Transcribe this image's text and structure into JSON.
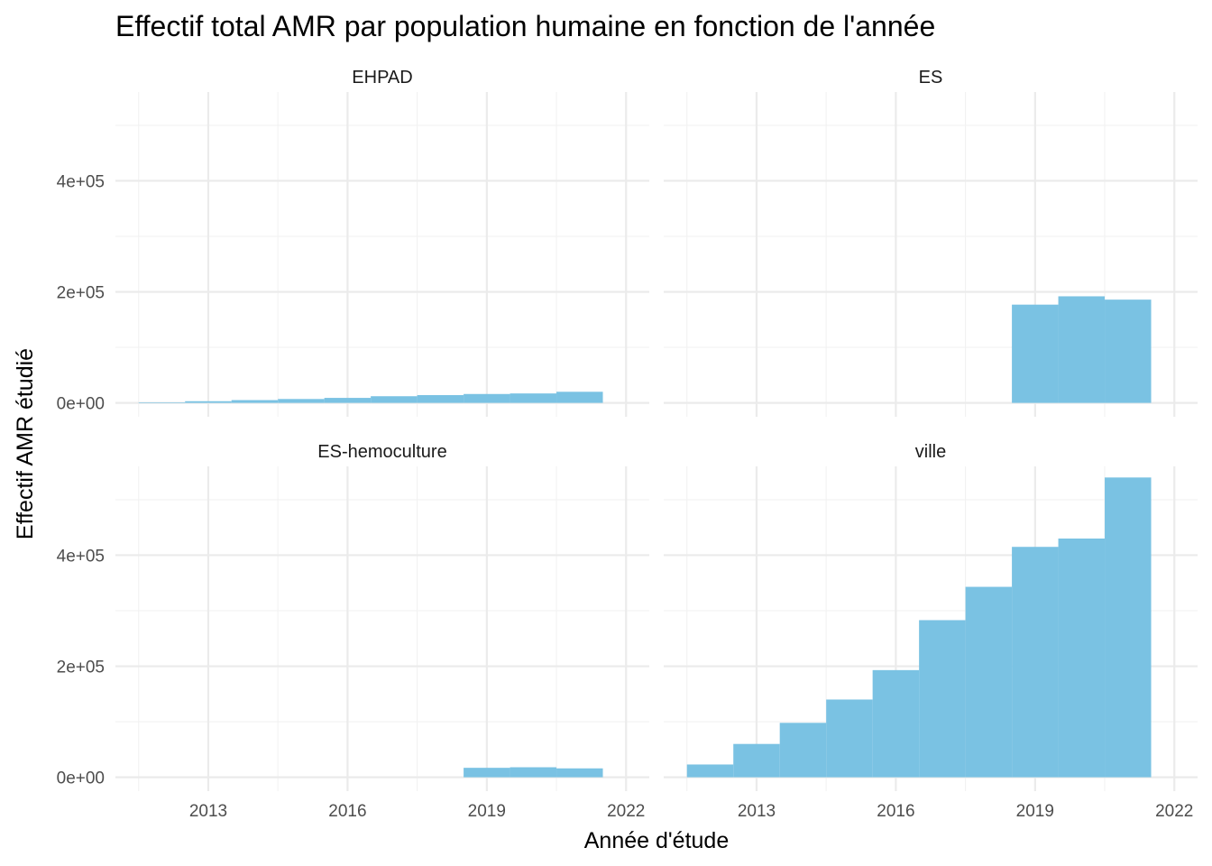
{
  "chart_data": {
    "type": "bar",
    "layout": "facet_wrap 2x2",
    "title": "Effectif total AMR par population humaine en fonction de l'année",
    "xlabel": "Année d'étude",
    "ylabel": "Effectif AMR étudié",
    "x_ticks": [
      2013,
      2016,
      2019,
      2022
    ],
    "y_ticks": [
      0,
      200000,
      400000
    ],
    "y_tick_labels": [
      "0e+00",
      "2e+05",
      "4e+05"
    ],
    "xlim": [
      2011,
      2022.5
    ],
    "ylim": [
      -25000,
      560000
    ],
    "bar_color": "#7AC2E3",
    "grid": true,
    "panels": [
      {
        "name": "EHPAD",
        "x": [
          2012,
          2013,
          2014,
          2015,
          2016,
          2017,
          2018,
          2019,
          2020,
          2021
        ],
        "values": [
          1000,
          3000,
          5000,
          7000,
          9000,
          12000,
          14000,
          16000,
          17000,
          20000
        ]
      },
      {
        "name": "ES",
        "x": [
          2019,
          2020,
          2021
        ],
        "values": [
          177000,
          192000,
          186000
        ]
      },
      {
        "name": "ES-hemoculture",
        "x": [
          2019,
          2020,
          2021
        ],
        "values": [
          17000,
          18000,
          16000
        ]
      },
      {
        "name": "ville",
        "x": [
          2012,
          2013,
          2014,
          2015,
          2016,
          2017,
          2018,
          2019,
          2020,
          2021
        ],
        "values": [
          23000,
          60000,
          98000,
          140000,
          193000,
          283000,
          343000,
          415000,
          430000,
          540000
        ]
      }
    ]
  }
}
